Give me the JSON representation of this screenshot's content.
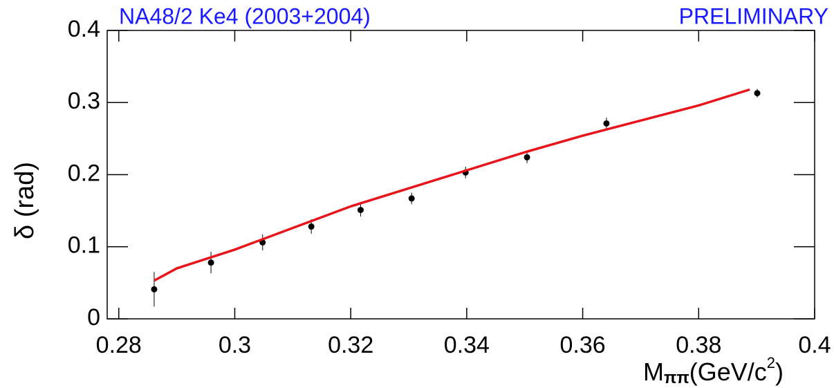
{
  "chart_data": {
    "type": "scatter",
    "title": "NA48/2 Ke4 (2003+2004)",
    "subtitle": "PRELIMINARY",
    "ylabel": "δ (rad)",
    "xlabel": [
      "M",
      "ππ",
      "(GeV/c",
      "2",
      ")"
    ],
    "xlim": [
      0.278,
      0.4
    ],
    "xticks": [
      0.28,
      0.3,
      0.32,
      0.34,
      0.36,
      0.38,
      0.4
    ],
    "ylim": [
      0,
      0.4
    ],
    "yticks": [
      0,
      0.1,
      0.2,
      0.3,
      0.4
    ],
    "grid": false,
    "series": [
      {
        "style": "points",
        "color": "#000000",
        "x": [
          0.2861,
          0.2959,
          0.3048,
          0.3132,
          0.3217,
          0.3305,
          0.3398,
          0.3504,
          0.3641,
          0.3901
        ],
        "values": [
          0.041,
          0.078,
          0.106,
          0.128,
          0.151,
          0.167,
          0.203,
          0.224,
          0.271,
          0.313
        ],
        "errors": [
          0.024,
          0.015,
          0.011,
          0.01,
          0.009,
          0.008,
          0.008,
          0.008,
          0.008,
          0.006
        ]
      },
      {
        "style": "line",
        "color": "#e8141c",
        "x": [
          0.2861,
          0.29,
          0.3,
          0.31,
          0.32,
          0.33,
          0.34,
          0.35,
          0.36,
          0.37,
          0.38,
          0.3888
        ],
        "values": [
          0.053,
          0.07,
          0.096,
          0.126,
          0.156,
          0.181,
          0.206,
          0.231,
          0.254,
          0.275,
          0.296,
          0.318
        ]
      }
    ]
  }
}
